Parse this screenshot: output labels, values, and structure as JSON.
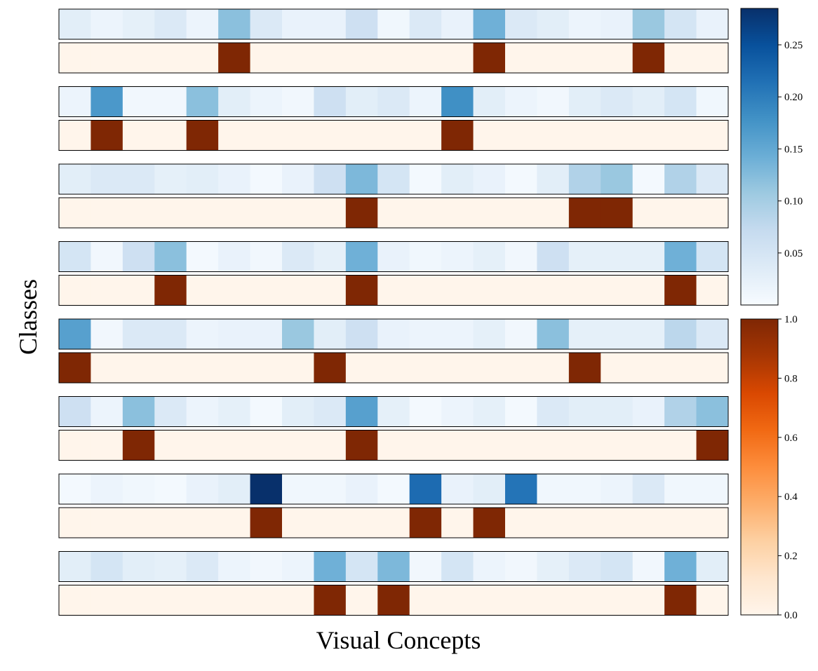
{
  "chart_data": {
    "type": "heatmap",
    "xlabel": "Visual Concepts",
    "ylabel": "Classes",
    "grid": false,
    "n_concepts": 21,
    "n_classes": 8,
    "attention_colormap": "Blues",
    "binary_colormap": "Oranges",
    "attention_colorbar": {
      "range": [
        0.0,
        0.285
      ],
      "ticks": [
        0.05,
        0.1,
        0.15,
        0.2,
        0.25
      ],
      "tick_labels": [
        "0.05",
        "0.10",
        "0.15",
        "0.20",
        "0.25"
      ]
    },
    "binary_colorbar": {
      "range": [
        0.0,
        1.0
      ],
      "ticks": [
        0.0,
        0.2,
        0.4,
        0.6,
        0.8,
        1.0
      ],
      "tick_labels": [
        "0.0",
        "0.2",
        "0.4",
        "0.6",
        "0.8",
        "1.0"
      ]
    },
    "rows": [
      {
        "attention": [
          0.03,
          0.015,
          0.025,
          0.04,
          0.015,
          0.12,
          0.04,
          0.02,
          0.02,
          0.06,
          0.01,
          0.04,
          0.02,
          0.14,
          0.04,
          0.03,
          0.015,
          0.02,
          0.11,
          0.05,
          0.02
        ],
        "selected": [
          0,
          0,
          0,
          0,
          0,
          1,
          0,
          0,
          0,
          0,
          0,
          0,
          0,
          1,
          0,
          0,
          0,
          0,
          1,
          0,
          0
        ]
      },
      {
        "attention": [
          0.015,
          0.17,
          0.008,
          0.008,
          0.12,
          0.03,
          0.015,
          0.008,
          0.06,
          0.03,
          0.04,
          0.015,
          0.18,
          0.03,
          0.015,
          0.008,
          0.03,
          0.04,
          0.03,
          0.05,
          0.01
        ],
        "selected": [
          0,
          1,
          0,
          0,
          1,
          0,
          0,
          0,
          0,
          0,
          0,
          0,
          1,
          0,
          0,
          0,
          0,
          0,
          0,
          0,
          0
        ]
      },
      {
        "attention": [
          0.03,
          0.04,
          0.04,
          0.025,
          0.03,
          0.02,
          0.005,
          0.02,
          0.06,
          0.13,
          0.05,
          0.005,
          0.03,
          0.02,
          0.005,
          0.03,
          0.09,
          0.11,
          0.005,
          0.09,
          0.04
        ],
        "selected": [
          0,
          0,
          0,
          0,
          0,
          0,
          0,
          0,
          0,
          1,
          0,
          0,
          0,
          0,
          0,
          0,
          1,
          1,
          0,
          0,
          0
        ]
      },
      {
        "attention": [
          0.05,
          0.008,
          0.06,
          0.12,
          0.005,
          0.02,
          0.008,
          0.04,
          0.025,
          0.14,
          0.02,
          0.01,
          0.015,
          0.025,
          0.008,
          0.06,
          0.025,
          0.025,
          0.025,
          0.14,
          0.05
        ],
        "selected": [
          0,
          0,
          0,
          1,
          0,
          0,
          0,
          0,
          0,
          1,
          0,
          0,
          0,
          0,
          0,
          0,
          0,
          0,
          0,
          1,
          0
        ]
      },
      {
        "attention": [
          0.16,
          0.008,
          0.04,
          0.04,
          0.015,
          0.02,
          0.02,
          0.11,
          0.03,
          0.06,
          0.02,
          0.015,
          0.015,
          0.025,
          0.008,
          0.12,
          0.025,
          0.025,
          0.025,
          0.08,
          0.04
        ],
        "selected": [
          1,
          0,
          0,
          0,
          0,
          0,
          0,
          0,
          1,
          0,
          0,
          0,
          0,
          0,
          0,
          0,
          1,
          0,
          0,
          0,
          0
        ]
      },
      {
        "attention": [
          0.06,
          0.015,
          0.12,
          0.04,
          0.015,
          0.025,
          0.005,
          0.03,
          0.04,
          0.16,
          0.025,
          0.005,
          0.015,
          0.025,
          0.005,
          0.04,
          0.03,
          0.03,
          0.02,
          0.09,
          0.12
        ],
        "selected": [
          0,
          0,
          1,
          0,
          0,
          0,
          0,
          0,
          0,
          1,
          0,
          0,
          0,
          0,
          0,
          0,
          0,
          0,
          0,
          0,
          1
        ]
      },
      {
        "attention": [
          0.005,
          0.015,
          0.01,
          0.005,
          0.02,
          0.03,
          0.285,
          0.01,
          0.01,
          0.02,
          0.005,
          0.22,
          0.02,
          0.03,
          0.21,
          0.01,
          0.01,
          0.015,
          0.04,
          0.01,
          0.01
        ],
        "selected": [
          0,
          0,
          0,
          0,
          0,
          0,
          1,
          0,
          0,
          0,
          0,
          1,
          0,
          1,
          0,
          0,
          0,
          0,
          0,
          0,
          0
        ]
      },
      {
        "attention": [
          0.03,
          0.05,
          0.03,
          0.025,
          0.04,
          0.015,
          0.008,
          0.015,
          0.14,
          0.05,
          0.13,
          0.008,
          0.05,
          0.015,
          0.008,
          0.025,
          0.04,
          0.05,
          0.008,
          0.14,
          0.03
        ],
        "selected": [
          0,
          0,
          0,
          0,
          0,
          0,
          0,
          0,
          1,
          0,
          1,
          0,
          0,
          0,
          0,
          0,
          0,
          0,
          0,
          1,
          0
        ]
      }
    ]
  }
}
